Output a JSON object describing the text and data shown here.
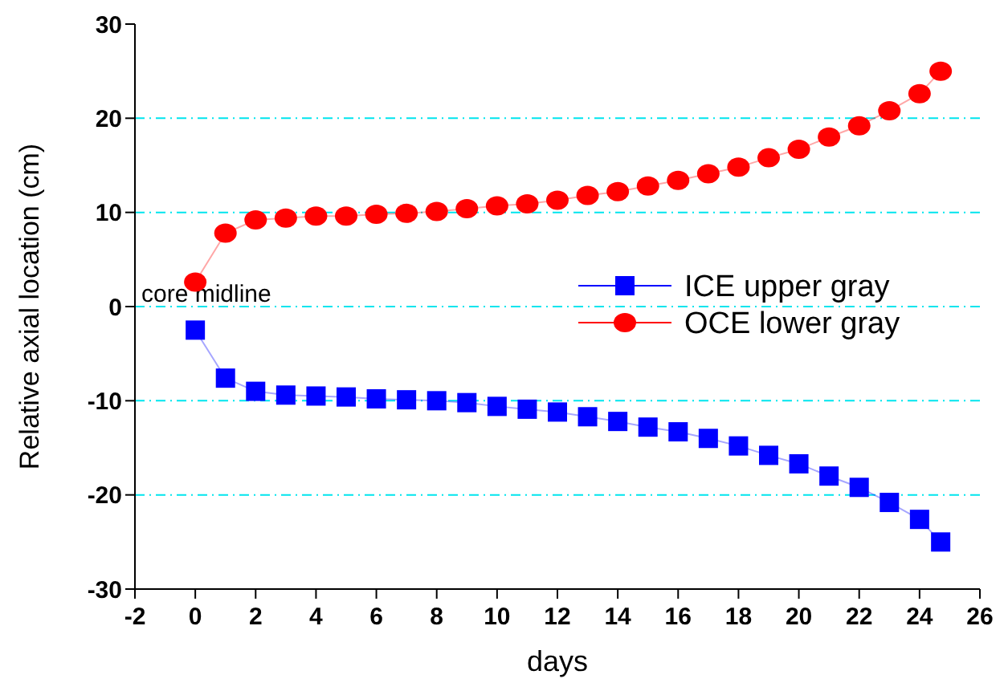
{
  "chart_data": {
    "type": "line",
    "xlabel": "days",
    "ylabel": "Relative axial location (cm)",
    "x": [
      0,
      1,
      2,
      3,
      4,
      5,
      6,
      7,
      8,
      9,
      10,
      11,
      12,
      13,
      14,
      15,
      16,
      17,
      18,
      19,
      20,
      21,
      22,
      23,
      24,
      24.7
    ],
    "series": [
      {
        "name": "ICE upper gray",
        "color": "#0000ff",
        "marker": "square",
        "values": [
          -2.5,
          -7.6,
          -9.0,
          -9.4,
          -9.5,
          -9.6,
          -9.8,
          -9.9,
          -10.0,
          -10.2,
          -10.6,
          -10.9,
          -11.2,
          -11.7,
          -12.2,
          -12.8,
          -13.3,
          -14.0,
          -14.8,
          -15.8,
          -16.7,
          -18.0,
          -19.2,
          -20.8,
          -22.6,
          -25.0
        ]
      },
      {
        "name": "OCE lower gray",
        "color": "#ff0000",
        "marker": "circle",
        "values": [
          2.6,
          7.8,
          9.2,
          9.4,
          9.6,
          9.6,
          9.8,
          9.9,
          10.1,
          10.4,
          10.7,
          10.9,
          11.3,
          11.8,
          12.2,
          12.8,
          13.4,
          14.1,
          14.8,
          15.8,
          16.7,
          18.0,
          19.2,
          20.8,
          22.6,
          25.0
        ]
      }
    ],
    "xlim": [
      -2,
      26
    ],
    "xticks": [
      -2,
      0,
      2,
      4,
      6,
      8,
      10,
      12,
      14,
      16,
      18,
      20,
      22,
      24,
      26
    ],
    "ylim": [
      -30,
      30
    ],
    "yticks": [
      -30,
      -20,
      -10,
      0,
      10,
      20,
      30
    ],
    "grid": "y",
    "legend": "right",
    "annotations": [
      "core midline"
    ]
  }
}
